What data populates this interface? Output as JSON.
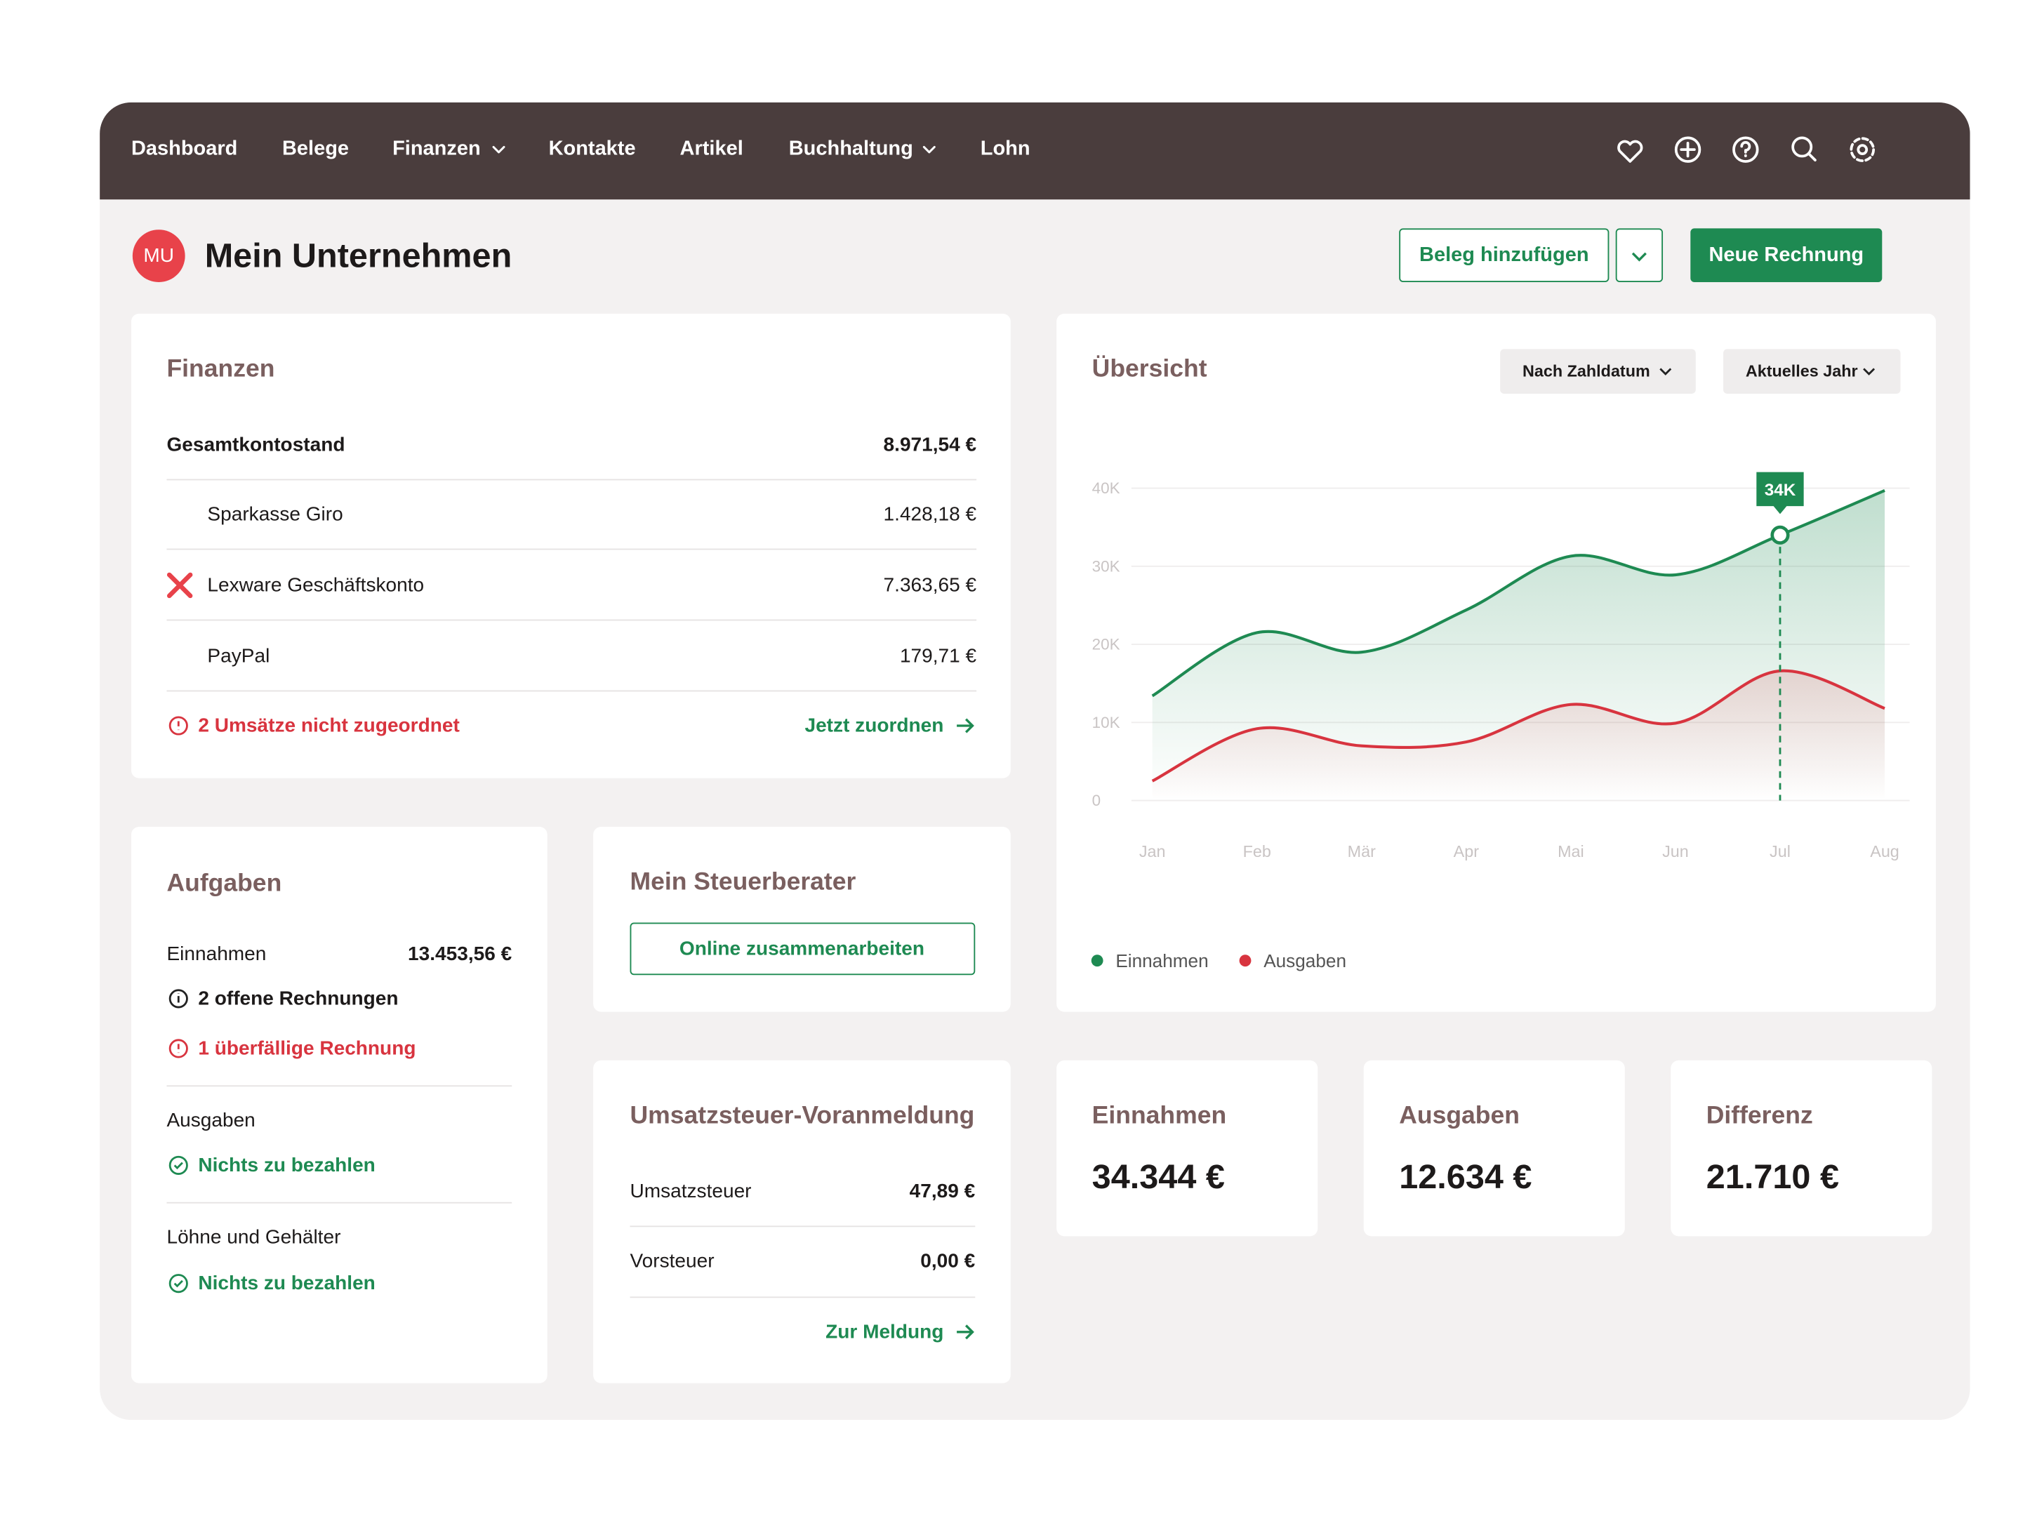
{
  "nav": {
    "items": [
      "Dashboard",
      "Belege",
      "Finanzen",
      "Kontakte",
      "Artikel",
      "Buchhaltung",
      "Lohn"
    ]
  },
  "header": {
    "avatar": "MU",
    "title": "Mein Unternehmen",
    "add_receipt": "Beleg hinzufügen",
    "new_invoice": "Neue Rechnung"
  },
  "finances": {
    "title": "Finanzen",
    "total": {
      "label": "Gesamtkontostand",
      "amount": "8.971,54 €"
    },
    "accounts": [
      {
        "label": "Sparkasse Giro",
        "amount": "1.428,18 €"
      },
      {
        "label": "Lexware Geschäftskonto",
        "amount": "7.363,65 €"
      },
      {
        "label": "PayPal",
        "amount": "179,71 €"
      }
    ],
    "warning": "2 Umsätze nicht zugeordnet",
    "action": "Jetzt zuordnen"
  },
  "tasks": {
    "title": "Aufgaben",
    "income": {
      "label": "Einnahmen",
      "amount": "13.453,56 €",
      "open": "2 offene Rechnungen",
      "overdue": "1 überfällige Rechnung"
    },
    "expenses": {
      "label": "Ausgaben",
      "status": "Nichts zu bezahlen"
    },
    "payroll": {
      "label": "Löhne und Gehälter",
      "status": "Nichts zu bezahlen"
    }
  },
  "advisor": {
    "title": "Mein Steuerberater",
    "button": "Online zusammenarbeiten"
  },
  "vat": {
    "title": "Umsatzsteuer-Voranmeldung",
    "rows": [
      {
        "label": "Umsatzsteuer",
        "amount": "47,89 €"
      },
      {
        "label": "Vorsteuer",
        "amount": "0,00 €"
      }
    ],
    "action": "Zur Meldung"
  },
  "overview": {
    "title": "Übersicht",
    "filters": [
      "Nach Zahldatum",
      "Aktuelles Jahr"
    ],
    "chart": {
      "type": "line",
      "categories": [
        "Jan",
        "Feb",
        "Mär",
        "Apr",
        "Mai",
        "Jun",
        "Jul",
        "Aug"
      ],
      "series": [
        {
          "name": "Einnahmen",
          "color": "#1e8a52",
          "values": [
            13400,
            21500,
            19000,
            24400,
            31300,
            28900,
            34000,
            39700
          ],
          "value_labels": [
            null,
            null,
            null,
            null,
            null,
            null,
            "34K",
            null
          ]
        },
        {
          "name": "Ausgaben",
          "color": "#d8343f",
          "values": [
            2500,
            9200,
            7000,
            7500,
            12300,
            9900,
            16600,
            11800
          ]
        }
      ],
      "ylim": [
        0,
        40000
      ],
      "yticks": [
        0,
        {
          "value": 10000,
          "label": "10K"
        },
        {
          "value": 20000,
          "label": "20K"
        },
        {
          "value": 30000,
          "label": "30K"
        },
        {
          "value": 40000,
          "label": "40K"
        }
      ],
      "grid": true
    }
  },
  "kpis": [
    {
      "label": "Einnahmen",
      "value": "34.344 €"
    },
    {
      "label": "Ausgaben",
      "value": "12.634 €"
    },
    {
      "label": "Differenz",
      "value": "21.710 €"
    }
  ]
}
